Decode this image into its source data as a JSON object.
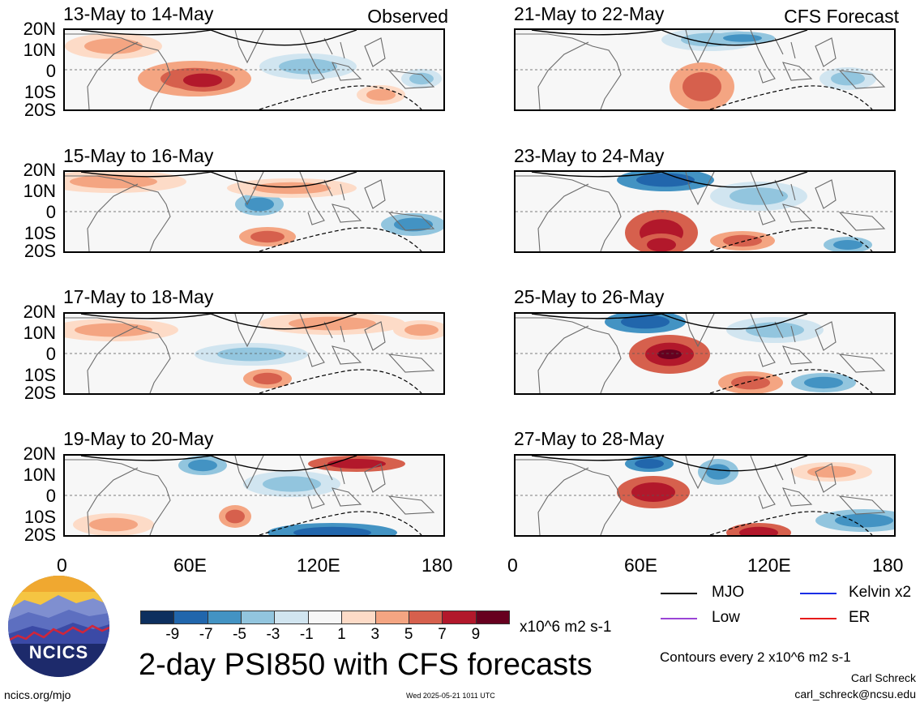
{
  "panels_left": [
    {
      "title": "13-May to 14-May",
      "tag": "Observed"
    },
    {
      "title": "15-May to 16-May",
      "tag": ""
    },
    {
      "title": "17-May to 18-May",
      "tag": ""
    },
    {
      "title": "19-May to 20-May",
      "tag": ""
    }
  ],
  "panels_right": [
    {
      "title": "21-May to 22-May",
      "tag": "CFS Forecast"
    },
    {
      "title": "23-May to 24-May",
      "tag": ""
    },
    {
      "title": "25-May to 26-May",
      "tag": ""
    },
    {
      "title": "27-May to 28-May",
      "tag": ""
    }
  ],
  "lat_labels": [
    "20N",
    "10N",
    "0",
    "10S",
    "20S"
  ],
  "lon_labels": [
    "0",
    "60E",
    "120E",
    "180"
  ],
  "colorbar": {
    "colors": [
      "#0d2f5e",
      "#2166ac",
      "#4393c3",
      "#92c5de",
      "#d1e5f0",
      "#f7f7f7",
      "#fddbc7",
      "#f4a582",
      "#d6604d",
      "#b2182b",
      "#67001f"
    ],
    "ticks": [
      "-9",
      "-7",
      "-5",
      "-3",
      "-1",
      "1",
      "3",
      "5",
      "7",
      "9"
    ],
    "units": "x10^6 m2 s-1"
  },
  "legend": [
    {
      "label": "MJO",
      "color": "#000000"
    },
    {
      "label": "Kelvin x2",
      "color": "#1a2ee6"
    },
    {
      "label": "Low",
      "color": "#9a44d6"
    },
    {
      "label": "ER",
      "color": "#e61a1a"
    }
  ],
  "main_title": "2-day PSI850 with CFS forecasts",
  "contour_note": "Contours every 2 x10^6 m2 s-1",
  "author": "Carl Schreck",
  "email": "carl_schreck@ncsu.edu",
  "website": "ncics.org/mjo",
  "timestamp": "Wed 2025-05-21 1011 UTC",
  "logo_text": "NCICS"
}
